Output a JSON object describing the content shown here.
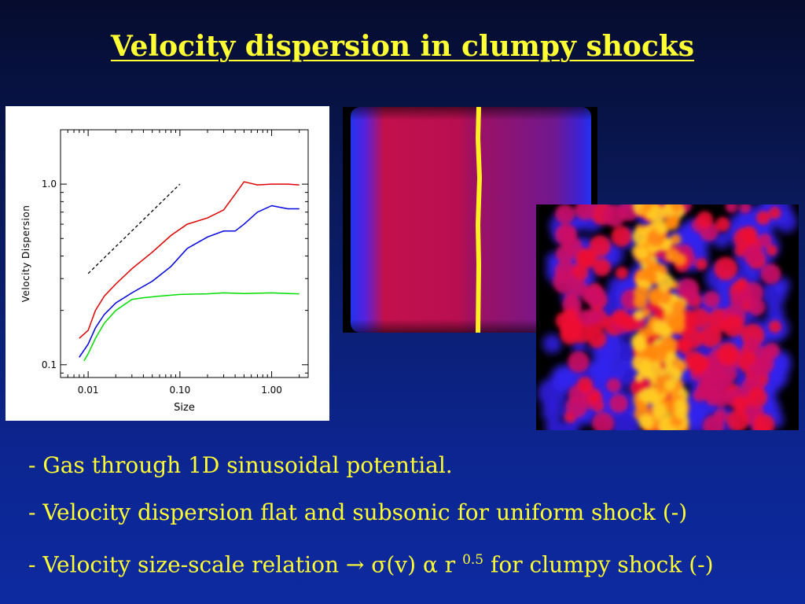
{
  "slide": {
    "title": "Velocity dispersion in clumpy shocks",
    "bullets": [
      "- Gas through 1D sinusoidal potential.",
      "- Velocity dispersion flat and subsonic for uniform shock (-)"
    ],
    "bullet3": {
      "prefix": "- Velocity size-scale relation ",
      "arrow": "→",
      "sigma": " σ(v) ",
      "alpha": "α",
      "r": " r ",
      "exponent": "0.5",
      "suffix": " for clumpy shock (-)"
    },
    "colors": {
      "title": "#ffff33",
      "text": "#ffff33",
      "background": "#0c2590"
    }
  },
  "chart_data": {
    "type": "line",
    "xlabel": "Size",
    "ylabel": "Velocity Dispersion",
    "xscale": "log",
    "yscale": "log",
    "xlim": [
      0.005,
      2.5
    ],
    "ylim": [
      0.085,
      2.0
    ],
    "xticks": [
      {
        "value": 0.01,
        "label": "0.01"
      },
      {
        "value": 0.1,
        "label": "0.10"
      },
      {
        "value": 1.0,
        "label": "1.00"
      }
    ],
    "yticks": [
      {
        "value": 0.1,
        "label": "0.1"
      },
      {
        "value": 1.0,
        "label": "1.0"
      }
    ],
    "grid": false,
    "series": [
      {
        "color": "#dd0000",
        "x": [
          0.008,
          0.01,
          0.012,
          0.015,
          0.02,
          0.03,
          0.05,
          0.08,
          0.12,
          0.2,
          0.3,
          0.4,
          0.5,
          0.7,
          1.0,
          1.5,
          2.0
        ],
        "y": [
          0.14,
          0.155,
          0.2,
          0.24,
          0.28,
          0.34,
          0.42,
          0.52,
          0.6,
          0.65,
          0.72,
          0.88,
          1.03,
          0.99,
          1.0,
          1.0,
          0.99
        ]
      },
      {
        "color": "#0000dd",
        "x": [
          0.008,
          0.01,
          0.012,
          0.015,
          0.02,
          0.03,
          0.05,
          0.08,
          0.12,
          0.2,
          0.3,
          0.4,
          0.5,
          0.7,
          1.0,
          1.5,
          2.0
        ],
        "y": [
          0.11,
          0.13,
          0.16,
          0.19,
          0.22,
          0.25,
          0.29,
          0.35,
          0.44,
          0.51,
          0.55,
          0.55,
          0.6,
          0.7,
          0.76,
          0.73,
          0.73
        ]
      },
      {
        "color": "#00dd00",
        "x": [
          0.009,
          0.01,
          0.012,
          0.015,
          0.02,
          0.03,
          0.04,
          0.06,
          0.1,
          0.2,
          0.3,
          0.5,
          1.0,
          1.5,
          2.0
        ],
        "y": [
          0.105,
          0.115,
          0.14,
          0.17,
          0.2,
          0.23,
          0.235,
          0.24,
          0.245,
          0.247,
          0.25,
          0.248,
          0.25,
          0.248,
          0.247
        ]
      }
    ],
    "reference_line": {
      "style": "dashed",
      "color": "#000000",
      "x": [
        0.01,
        0.1
      ],
      "y": [
        0.32,
        1.0
      ]
    }
  }
}
